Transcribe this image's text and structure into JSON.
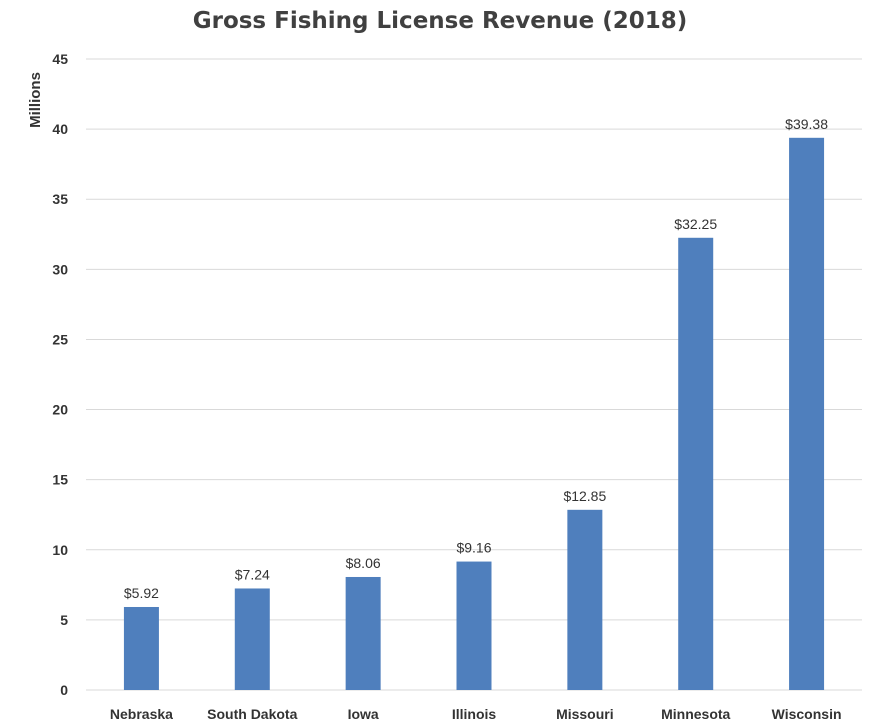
{
  "chart_data": {
    "type": "bar",
    "title": "Gross Fishing License Revenue (2018)",
    "ylabel": "Millions",
    "xlabel": "",
    "categories": [
      "Nebraska",
      "South Dakota",
      "Iowa",
      "Illinois",
      "Missouri",
      "Minnesota",
      "Wisconsin"
    ],
    "values": [
      5.92,
      7.24,
      8.06,
      9.16,
      12.85,
      32.25,
      39.38
    ],
    "value_labels": [
      "$5.92",
      "$7.24",
      "$8.06",
      "$9.16",
      "$12.85",
      "$32.25",
      "$39.38"
    ],
    "ylim": [
      0,
      45
    ],
    "yticks": [
      0,
      5,
      10,
      15,
      20,
      25,
      30,
      35,
      40,
      45
    ],
    "grid": true,
    "bar_color": "#4f7fbd",
    "grid_color": "#d9d9d9"
  }
}
